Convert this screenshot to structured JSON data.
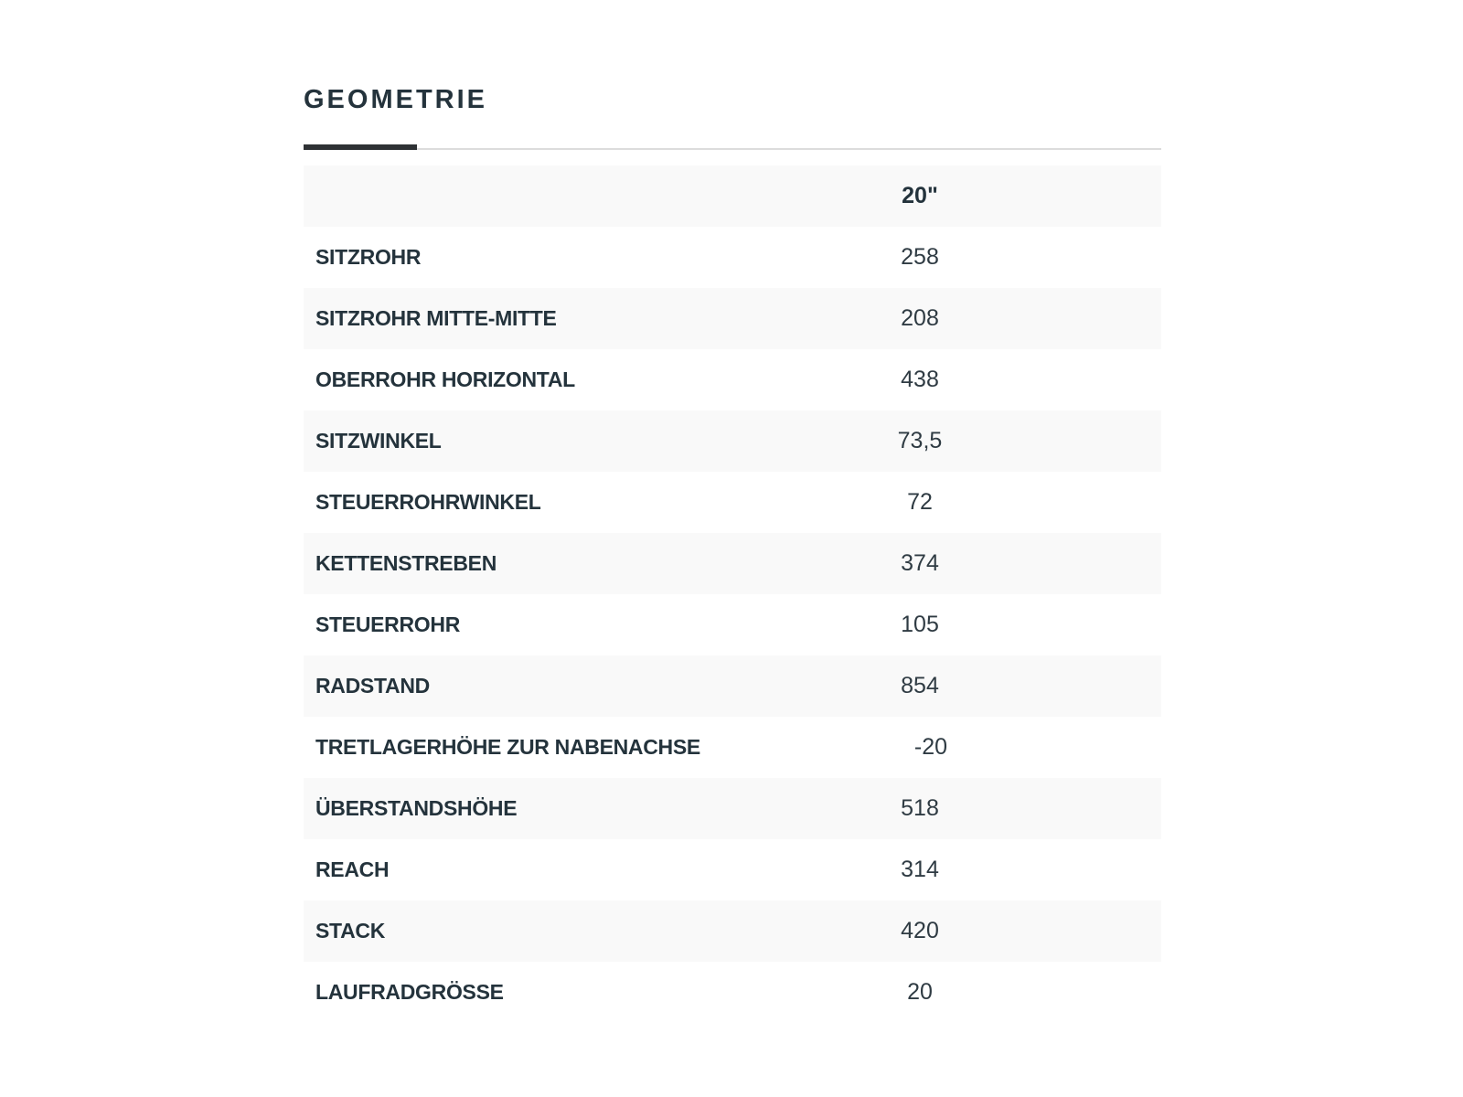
{
  "page": {
    "title": "GEOMETRIE"
  },
  "colors": {
    "heading_text": "#24333c",
    "value_text": "#2f3b43",
    "row_stripe": "#f9f9f9",
    "divider_accent": "#2e3134",
    "divider_line": "#dcdcdc"
  },
  "table": {
    "size_header": "20\"",
    "rows": [
      {
        "label": "SITZROHR",
        "value": "258"
      },
      {
        "label": "SITZROHR MITTE-MITTE",
        "value": "208"
      },
      {
        "label": "OBERROHR HORIZONTAL",
        "value": "438"
      },
      {
        "label": "SITZWINKEL",
        "value": "73,5"
      },
      {
        "label": "STEUERROHRWINKEL",
        "value": "72"
      },
      {
        "label": "KETTENSTREBEN",
        "value": "374"
      },
      {
        "label": "STEUERROHR",
        "value": "105"
      },
      {
        "label": "RADSTAND",
        "value": "854"
      },
      {
        "label": "TRETLAGERHÖHE ZUR NABENACHSE",
        "value": "-20"
      },
      {
        "label": "ÜBERSTANDSHÖHE",
        "value": "518"
      },
      {
        "label": "REACH",
        "value": "314"
      },
      {
        "label": "STACK",
        "value": "420"
      },
      {
        "label": "LAUFRADGRÖSSE",
        "value": "20"
      }
    ]
  }
}
